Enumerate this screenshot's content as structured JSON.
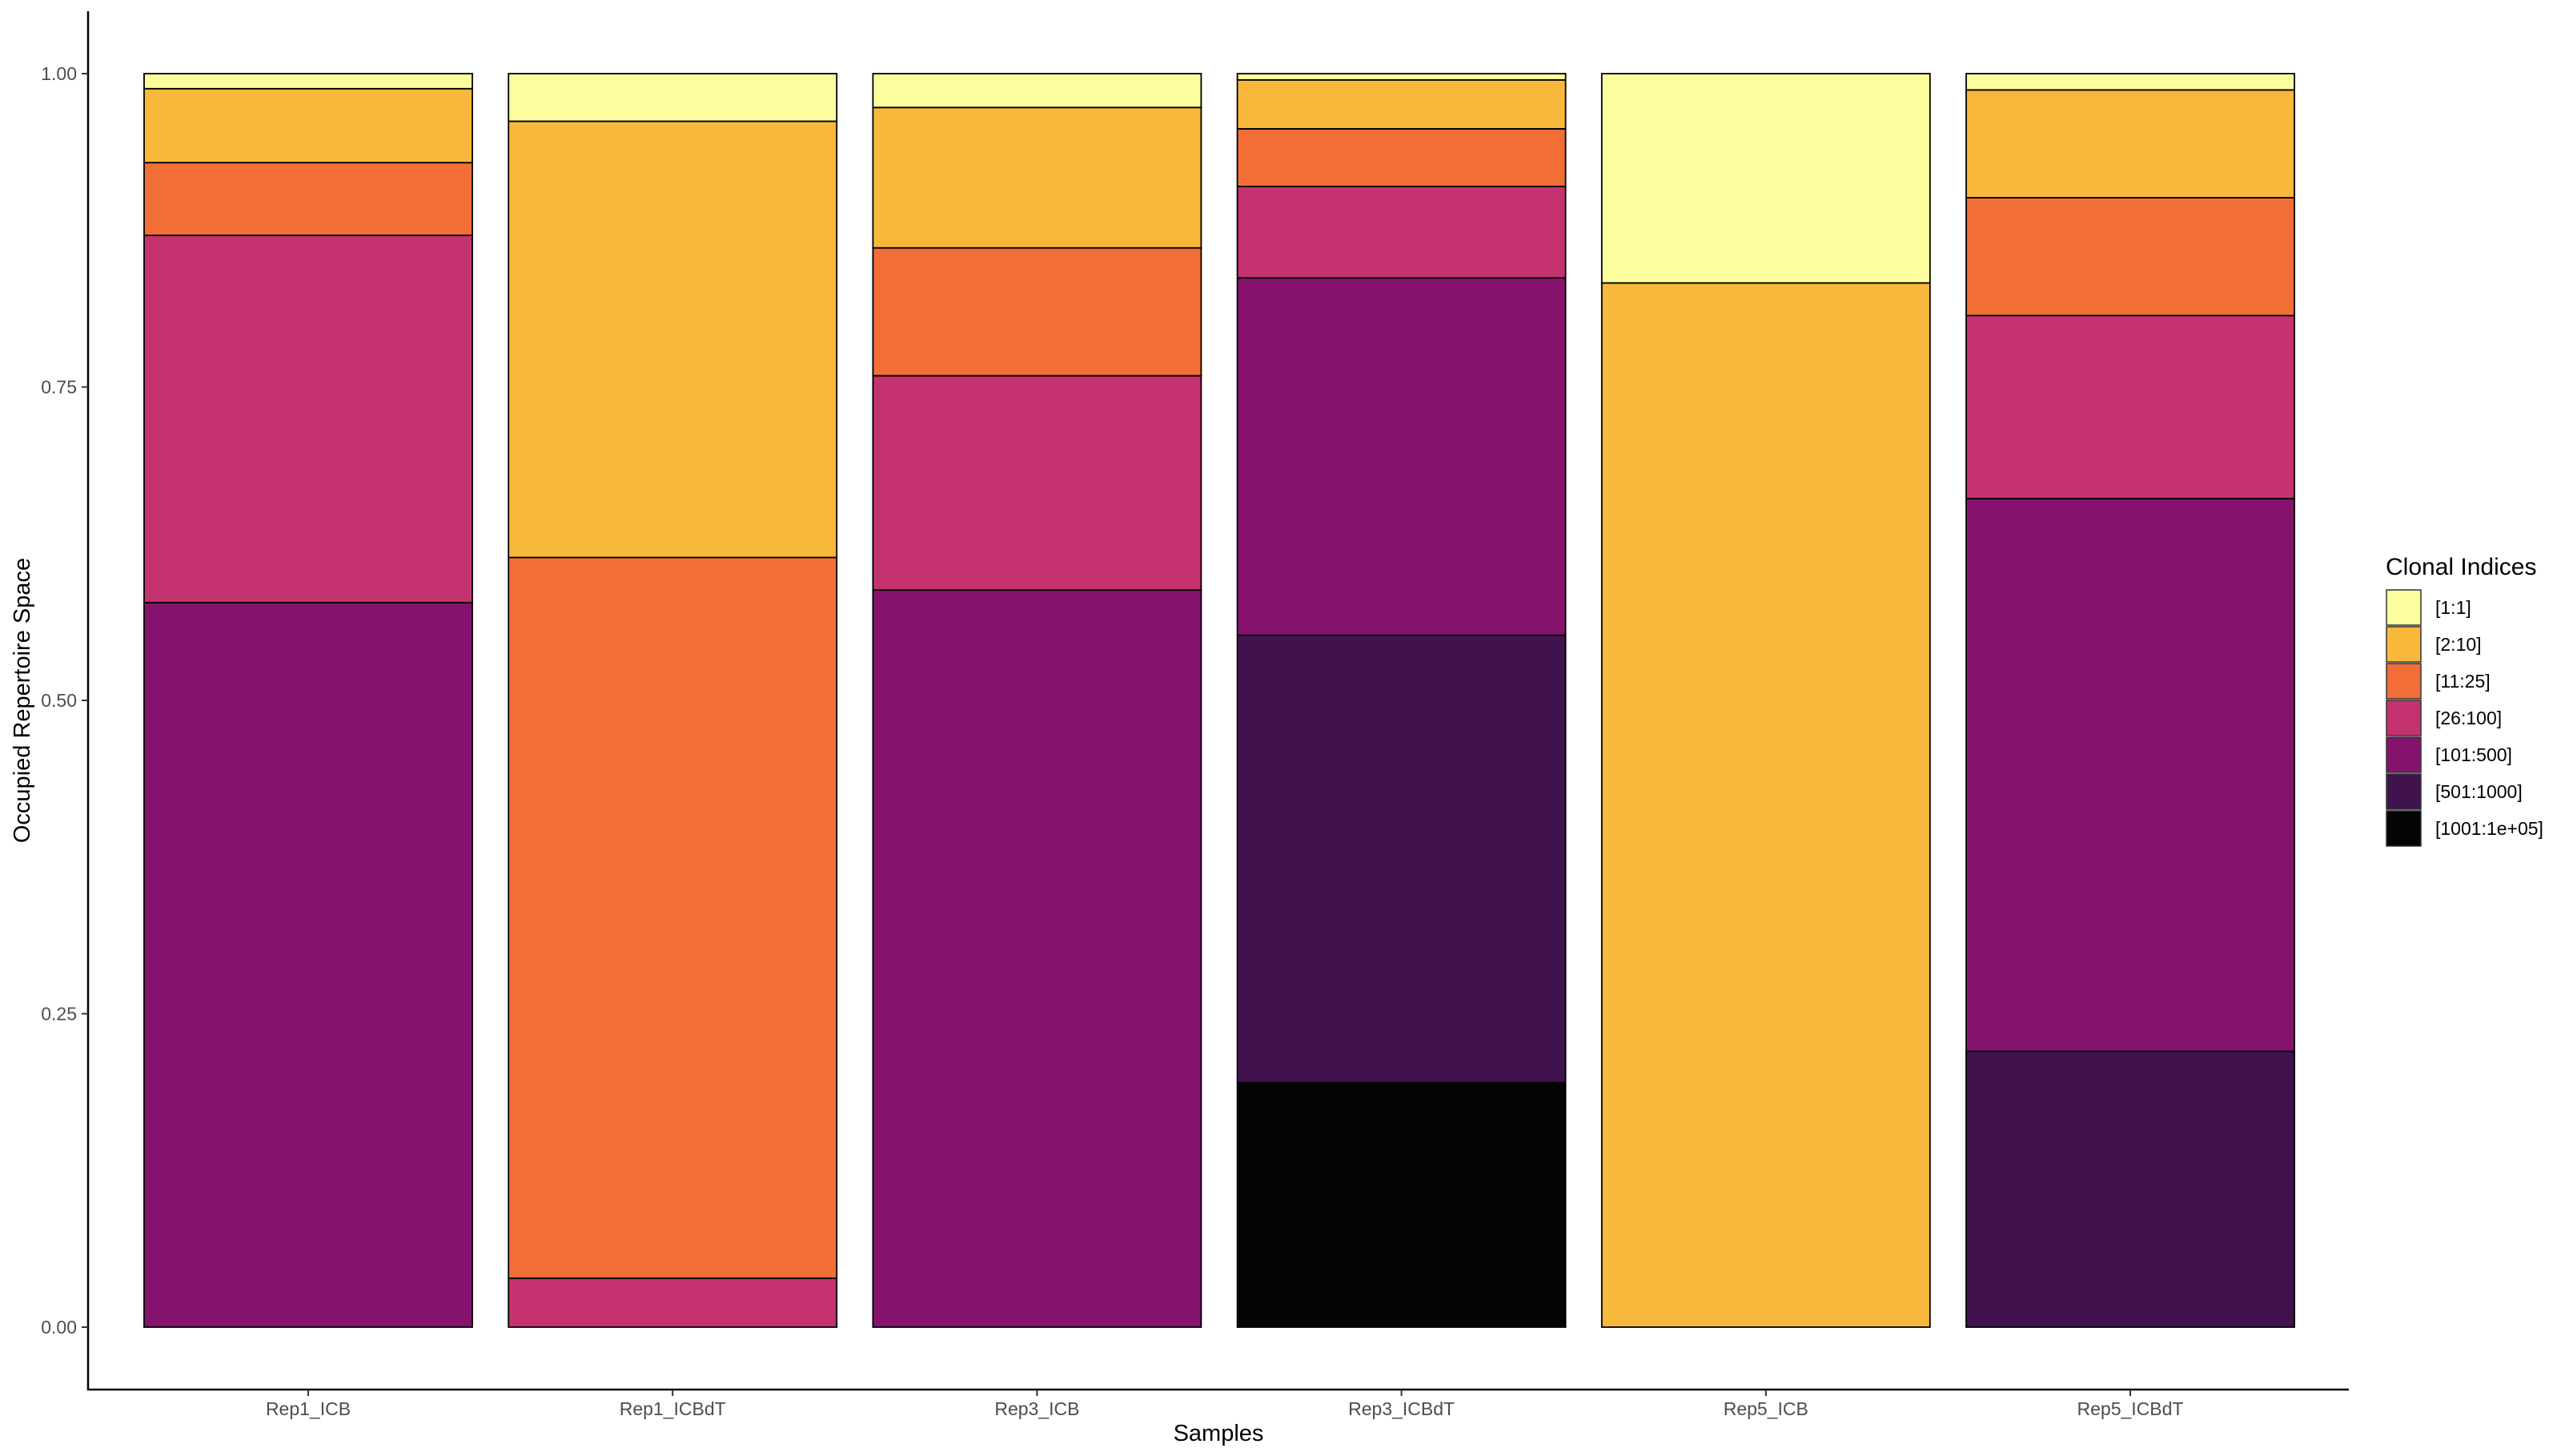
{
  "chart_data": {
    "type": "bar",
    "stacked": true,
    "xlabel": "Samples",
    "ylabel": "Occupied Repertoire Space",
    "ylim": [
      0,
      1
    ],
    "yticks": [
      "0.00",
      "0.25",
      "0.50",
      "0.75",
      "1.00"
    ],
    "grid": false,
    "legend_title": "Clonal Indices",
    "legend_position": "right",
    "categories": [
      "Rep1_ICB",
      "Rep1_ICBdT",
      "Rep3_ICB",
      "Rep3_ICBdT",
      "Rep5_ICB",
      "Rep5_ICBdT"
    ],
    "series": [
      {
        "name": "[1:1]",
        "color": "#FCFD9C",
        "values": [
          0.012,
          0.038,
          0.027,
          0.005,
          0.167,
          0.013
        ]
      },
      {
        "name": "[2:10]",
        "color": "#F7B83C",
        "values": [
          0.059,
          0.348,
          0.112,
          0.039,
          0.833,
          0.086
        ]
      },
      {
        "name": "[11:25]",
        "color": "#F16E36",
        "values": [
          0.058,
          0.575,
          0.102,
          0.046,
          0,
          0.094
        ]
      },
      {
        "name": "[26:100]",
        "color": "#C4326F",
        "values": [
          0.293,
          0.039,
          0.171,
          0.073,
          0,
          0.146
        ]
      },
      {
        "name": "[101:500]",
        "color": "#85136E",
        "values": [
          0.578,
          0,
          0.588,
          0.285,
          0,
          0.441
        ]
      },
      {
        "name": "[501:1000]",
        "color": "#40134F",
        "values": [
          0,
          0,
          0,
          0.357,
          0,
          0.22
        ]
      },
      {
        "name": "[1001:1e+05]",
        "color": "#040404",
        "values": [
          0,
          0,
          0,
          0.195,
          0,
          0
        ]
      }
    ]
  }
}
